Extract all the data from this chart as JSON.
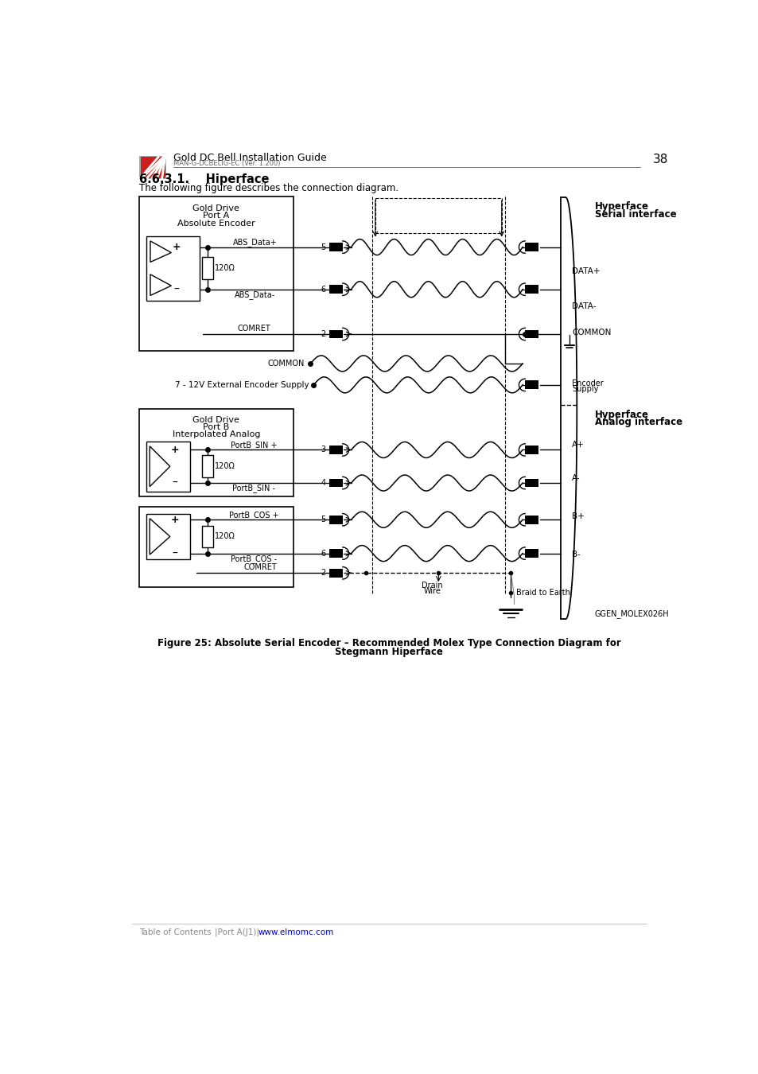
{
  "title_main": "Gold DC Bell Installation Guide",
  "title_sub": "MAN-G-DCBELIG-EC (Ver. 1.200)",
  "page_num": "38",
  "section": "6.6.3.1.",
  "section_title": "Hiperface",
  "intro_text": "The following figure describes the connection diagram.",
  "fig_caption_line1": "Figure 25: Absolute Serial Encoder – Recommended Molex Type Connection Diagram for",
  "fig_caption_line2": "Stegmann Hiperface",
  "footer_text": "Table of Contents",
  "footer_link1": "|Port A(J1)|",
  "footer_link2": "www.elmomc.com",
  "bg_color": "#ffffff"
}
